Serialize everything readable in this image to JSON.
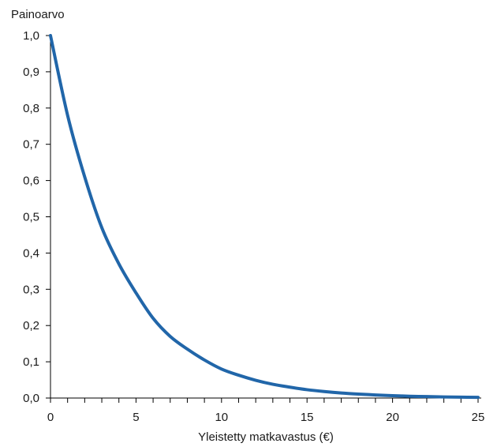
{
  "chart_data": {
    "type": "line",
    "title": "",
    "ylabel": "Painoarvo",
    "xlabel": "Yleistetty matkavastus (€)",
    "xlim": [
      0,
      25
    ],
    "ylim": [
      0,
      1
    ],
    "x_ticks": [
      0,
      5,
      10,
      15,
      20,
      25
    ],
    "x_tick_labels": [
      "0",
      "5",
      "10",
      "15",
      "20",
      "25"
    ],
    "x_minor_tick_step": 1,
    "y_ticks": [
      0,
      0.1,
      0.2,
      0.3,
      0.4,
      0.5,
      0.6,
      0.7,
      0.8,
      0.9,
      1.0
    ],
    "y_tick_labels": [
      "0,0",
      "0,1",
      "0,2",
      "0,3",
      "0,4",
      "0,5",
      "0,6",
      "0,7",
      "0,8",
      "0,9",
      "1,0"
    ],
    "grid": false,
    "legend": "none",
    "series": [
      {
        "color": "#2166a9",
        "x": [
          0,
          1,
          2,
          3,
          4,
          5,
          6,
          7,
          8,
          9,
          10,
          11,
          12,
          13,
          14,
          15,
          16,
          17,
          18,
          19,
          20,
          21,
          22,
          23,
          24,
          25
        ],
        "values": [
          1.0,
          0.78,
          0.61,
          0.47,
          0.37,
          0.29,
          0.22,
          0.17,
          0.135,
          0.105,
          0.08,
          0.063,
          0.049,
          0.038,
          0.03,
          0.023,
          0.018,
          0.014,
          0.011,
          0.0085,
          0.0066,
          0.005,
          0.004,
          0.003,
          0.0024,
          0.0018
        ]
      }
    ]
  }
}
